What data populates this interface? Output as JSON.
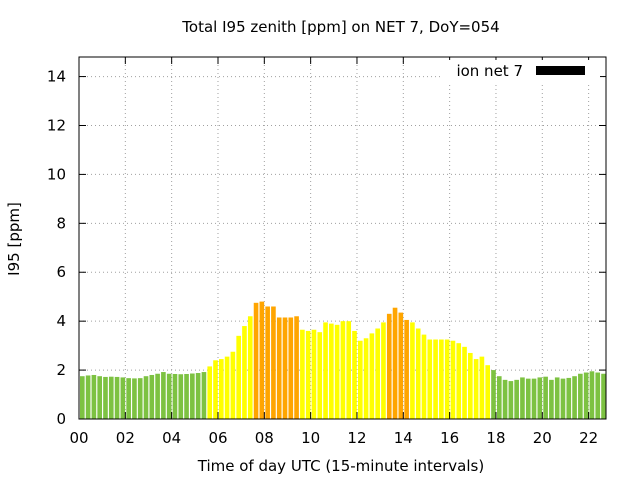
{
  "chart_data": {
    "type": "bar",
    "title": "Total I95 zenith [ppm] on NET 7, DoY=054",
    "xlabel": "Time of day UTC (15-minute intervals)",
    "ylabel": "I95 [ppm]",
    "xlim": [
      0,
      22.75
    ],
    "ylim": [
      0,
      14.8
    ],
    "xticks": [
      "00",
      "02",
      "04",
      "06",
      "08",
      "10",
      "12",
      "14",
      "16",
      "18",
      "20",
      "22"
    ],
    "yticks": [
      "0",
      "2",
      "4",
      "6",
      "8",
      "10",
      "12",
      "14"
    ],
    "grid": true,
    "legend": {
      "position": "top-right",
      "entries": [
        {
          "label": "ion net 7",
          "color": "#000000"
        }
      ]
    },
    "bar_width_hours": 0.2,
    "series": [
      {
        "interval_hours": 0.25,
        "start_hour": 0,
        "values": [
          1.75,
          1.78,
          1.8,
          1.75,
          1.72,
          1.73,
          1.72,
          1.7,
          1.67,
          1.66,
          1.67,
          1.75,
          1.8,
          1.85,
          1.92,
          1.85,
          1.84,
          1.83,
          1.84,
          1.86,
          1.88,
          1.92,
          2.15,
          2.4,
          2.45,
          2.55,
          2.75,
          3.4,
          3.8,
          4.2,
          4.75,
          4.8,
          4.6,
          4.6,
          4.15,
          4.15,
          4.15,
          4.2,
          3.65,
          3.6,
          3.65,
          3.55,
          3.95,
          3.9,
          3.85,
          4.0,
          4.0,
          3.6,
          3.2,
          3.3,
          3.5,
          3.7,
          3.95,
          4.3,
          4.55,
          4.35,
          4.05,
          3.95,
          3.7,
          3.45,
          3.25,
          3.25,
          3.25,
          3.25,
          3.2,
          3.1,
          2.95,
          2.7,
          2.45,
          2.55,
          2.2,
          2.0,
          1.75,
          1.6,
          1.55,
          1.6,
          1.7,
          1.65,
          1.65,
          1.7,
          1.73,
          1.6,
          1.7,
          1.65,
          1.68,
          1.75,
          1.85,
          1.9,
          1.95,
          1.9,
          1.85
        ],
        "levels": [
          "g",
          "g",
          "g",
          "g",
          "g",
          "g",
          "g",
          "g",
          "g",
          "g",
          "g",
          "g",
          "g",
          "g",
          "g",
          "g",
          "g",
          "g",
          "g",
          "g",
          "g",
          "g",
          "y",
          "y",
          "y",
          "y",
          "y",
          "y",
          "y",
          "y",
          "o",
          "o",
          "o",
          "o",
          "o",
          "o",
          "o",
          "o",
          "y",
          "y",
          "y",
          "y",
          "y",
          "y",
          "y",
          "y",
          "y",
          "y",
          "y",
          "y",
          "y",
          "y",
          "y",
          "o",
          "o",
          "o",
          "o",
          "y",
          "y",
          "y",
          "y",
          "y",
          "y",
          "y",
          "y",
          "y",
          "y",
          "y",
          "y",
          "y",
          "y",
          "g",
          "g",
          "g",
          "g",
          "g",
          "g",
          "g",
          "g",
          "g",
          "g",
          "g",
          "g",
          "g",
          "g",
          "g",
          "g",
          "g",
          "g",
          "g",
          "g"
        ]
      }
    ],
    "level_colors": {
      "g": "#7dc242",
      "y": "#ffff00",
      "o": "#ffa500"
    }
  }
}
